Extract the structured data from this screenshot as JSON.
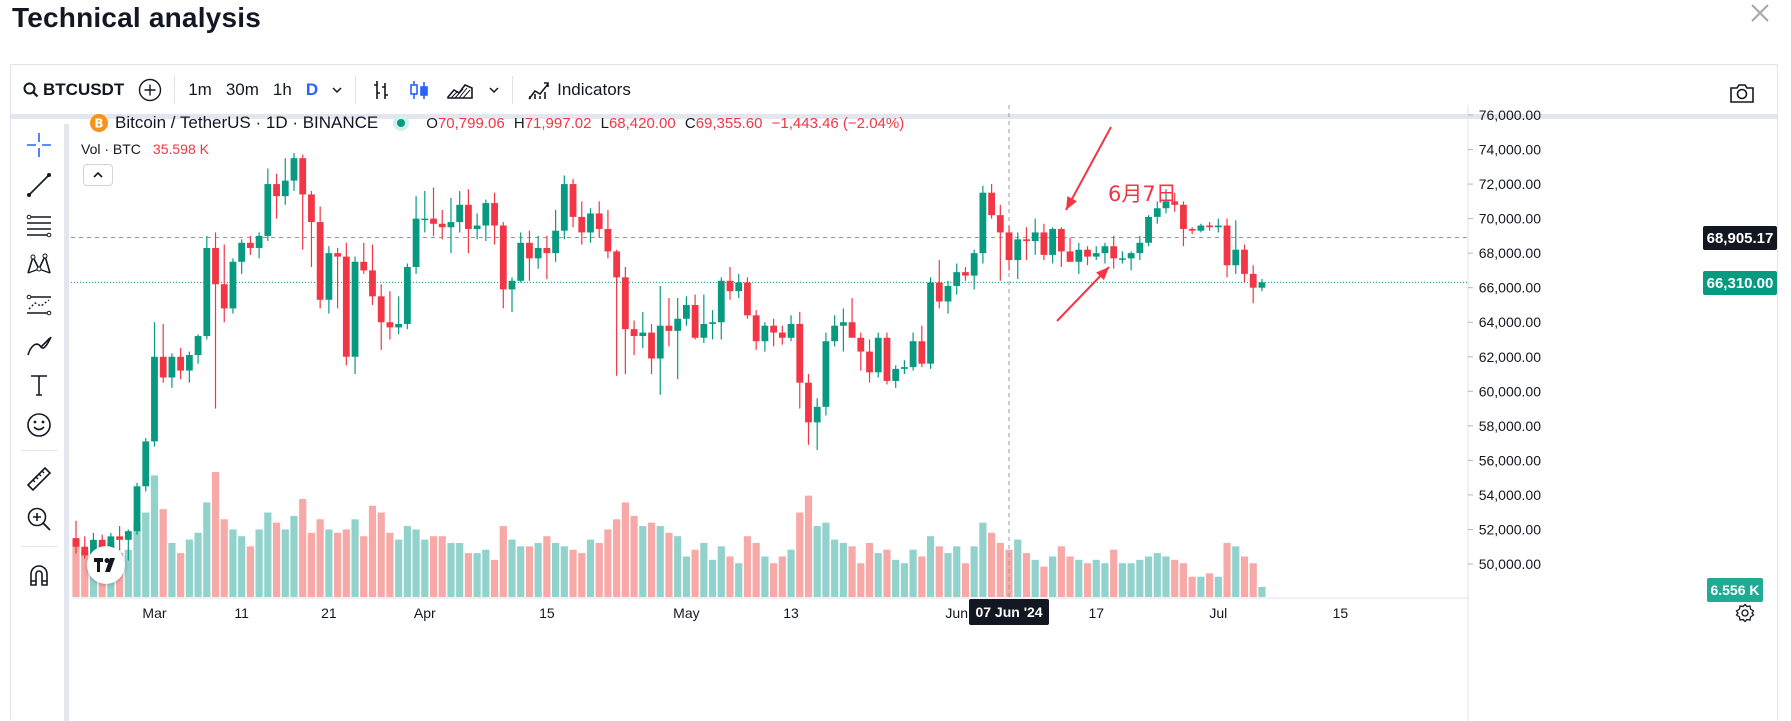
{
  "page": {
    "title": "Technical analysis"
  },
  "toolbar": {
    "symbol": "BTCUSDT",
    "intervals": [
      "1m",
      "30m",
      "1h",
      "D"
    ],
    "active_interval": "D",
    "indicators_label": "Indicators"
  },
  "legend": {
    "symbol_line": "Bitcoin / TetherUS · 1D · BINANCE",
    "o_label": "O",
    "o_value": "70,799.06",
    "h_label": "H",
    "h_value": "71,997.02",
    "l_label": "L",
    "l_value": "68,420.00",
    "c_label": "C",
    "c_value": "69,355.60",
    "change": "−1,443.46 (−2.04%)",
    "vol_label": "Vol · BTC",
    "vol_value": "35.598 K"
  },
  "annotation": {
    "text": "6月7日"
  },
  "crosshair": {
    "date_label": "07 Jun '24",
    "price_label": "68,905.17",
    "price": 68905.17
  },
  "last_price": {
    "label": "66,310.00",
    "price": 66310
  },
  "volume_tag": "6.556 K",
  "colors": {
    "up": "#089981",
    "down": "#f23645",
    "up_vol": "#92d2cc",
    "down_vol": "#f7a9a7",
    "accent": "#2962ff"
  },
  "chart_data": {
    "type": "candlestick",
    "symbol": "BTCUSDT",
    "y_ticks": [
      "76,000.00",
      "74,000.00",
      "72,000.00",
      "70,000.00",
      "68,000.00",
      "66,000.00",
      "64,000.00",
      "62,000.00",
      "60,000.00",
      "58,000.00",
      "56,000.00",
      "54,000.00",
      "52,000.00",
      "50,000.00"
    ],
    "y_tick_values": [
      76000,
      74000,
      72000,
      70000,
      68000,
      66000,
      64000,
      62000,
      60000,
      58000,
      56000,
      54000,
      52000,
      50000
    ],
    "ylim": [
      48000,
      76500
    ],
    "x_ticks": [
      {
        "label": "Mar",
        "index": 9
      },
      {
        "label": "11",
        "index": 19
      },
      {
        "label": "21",
        "index": 29
      },
      {
        "label": "Apr",
        "index": 40
      },
      {
        "label": "15",
        "index": 54
      },
      {
        "label": "May",
        "index": 70
      },
      {
        "label": "13",
        "index": 82
      },
      {
        "label": "Jun",
        "index": 101
      },
      {
        "label": "17",
        "index": 117
      },
      {
        "label": "Jul",
        "index": 131
      },
      {
        "label": "15",
        "index": 145
      }
    ],
    "crosshair_index": 107,
    "candles": [
      [
        51500,
        52500,
        50600,
        51000,
        1.7
      ],
      [
        51000,
        51600,
        50300,
        50500,
        1.4
      ],
      [
        50500,
        51800,
        50200,
        51400,
        1.2
      ],
      [
        51400,
        51700,
        49500,
        49900,
        1.5
      ],
      [
        49900,
        51800,
        49700,
        51600,
        1.6
      ],
      [
        51600,
        52200,
        50800,
        51400,
        1.3
      ],
      [
        51400,
        52000,
        50200,
        51900,
        1.4
      ],
      [
        51900,
        54700,
        51700,
        54500,
        2.2
      ],
      [
        54500,
        57300,
        54200,
        57100,
        2.5
      ],
      [
        57100,
        64000,
        56800,
        62000,
        3.6
      ],
      [
        62000,
        63900,
        60500,
        60800,
        2.6
      ],
      [
        60800,
        62200,
        60200,
        62000,
        1.6
      ],
      [
        62000,
        62500,
        60700,
        61200,
        1.3
      ],
      [
        61200,
        62300,
        60500,
        62100,
        1.7
      ],
      [
        62100,
        63300,
        61600,
        63200,
        1.9
      ],
      [
        63200,
        69000,
        63000,
        68300,
        2.8
      ],
      [
        68300,
        69200,
        59000,
        66200,
        3.7
      ],
      [
        66200,
        68500,
        64000,
        64800,
        2.3
      ],
      [
        64800,
        67700,
        64500,
        67500,
        2.0
      ],
      [
        67500,
        68800,
        66800,
        68600,
        1.8
      ],
      [
        68600,
        69000,
        67900,
        68300,
        1.5
      ],
      [
        68300,
        69200,
        67700,
        69000,
        2.0
      ],
      [
        69000,
        72900,
        68700,
        72000,
        2.5
      ],
      [
        72000,
        72600,
        70000,
        71300,
        2.2
      ],
      [
        71300,
        73500,
        70800,
        72200,
        2.0
      ],
      [
        72200,
        73800,
        71600,
        73500,
        2.4
      ],
      [
        73500,
        73700,
        68200,
        71400,
        2.9
      ],
      [
        71400,
        71600,
        67200,
        69800,
        1.9
      ],
      [
        69800,
        70700,
        64800,
        65300,
        2.3
      ],
      [
        65300,
        68400,
        64500,
        68000,
        2.0
      ],
      [
        68000,
        68300,
        64800,
        67800,
        1.9
      ],
      [
        67800,
        68600,
        61500,
        62000,
        2.0
      ],
      [
        62000,
        67800,
        61000,
        67500,
        2.3
      ],
      [
        67500,
        68600,
        66800,
        67000,
        1.8
      ],
      [
        67000,
        68500,
        65000,
        65500,
        2.7
      ],
      [
        65500,
        66200,
        62400,
        64000,
        2.5
      ],
      [
        64000,
        65800,
        63000,
        63700,
        1.9
      ],
      [
        63700,
        65500,
        63300,
        63900,
        1.7
      ],
      [
        63900,
        67400,
        63600,
        67200,
        2.1
      ],
      [
        67200,
        71300,
        66800,
        70000,
        2.0
      ],
      [
        70000,
        71600,
        69200,
        70000,
        1.7
      ],
      [
        70000,
        71800,
        69000,
        69700,
        1.8
      ],
      [
        69700,
        70500,
        68800,
        69500,
        1.8
      ],
      [
        69500,
        71200,
        68000,
        69800,
        1.6
      ],
      [
        69800,
        71600,
        69200,
        70800,
        1.6
      ],
      [
        70800,
        71700,
        68000,
        69400,
        1.3
      ],
      [
        69400,
        70300,
        68800,
        69600,
        1.3
      ],
      [
        69600,
        71100,
        68700,
        70900,
        1.4
      ],
      [
        70900,
        71500,
        68500,
        69600,
        1.1
      ],
      [
        69600,
        69800,
        64800,
        65900,
        2.1
      ],
      [
        65900,
        66600,
        64600,
        66400,
        1.7
      ],
      [
        66400,
        69200,
        66300,
        68600,
        1.5
      ],
      [
        68600,
        69300,
        66400,
        67700,
        1.5
      ],
      [
        67700,
        69000,
        67100,
        68300,
        1.6
      ],
      [
        68300,
        69000,
        66500,
        68000,
        1.8
      ],
      [
        68000,
        70500,
        67500,
        69300,
        1.6
      ],
      [
        69300,
        72500,
        68800,
        72000,
        1.5
      ],
      [
        72000,
        72300,
        69500,
        70100,
        1.4
      ],
      [
        70100,
        71000,
        68500,
        69200,
        1.3
      ],
      [
        69200,
        70600,
        68600,
        70300,
        1.7
      ],
      [
        70300,
        71000,
        68900,
        69400,
        1.6
      ],
      [
        69400,
        70500,
        67700,
        68100,
        2.0
      ],
      [
        68100,
        68200,
        60900,
        66600,
        2.3
      ],
      [
        66600,
        67200,
        61000,
        63600,
        2.8
      ],
      [
        63600,
        64100,
        62100,
        63200,
        2.4
      ],
      [
        63200,
        64600,
        62500,
        63400,
        2.1
      ],
      [
        63400,
        63900,
        61000,
        61900,
        2.2
      ],
      [
        61900,
        66100,
        59800,
        63800,
        2.1
      ],
      [
        63800,
        65400,
        62600,
        63500,
        1.9
      ],
      [
        63500,
        65400,
        60700,
        64200,
        1.8
      ],
      [
        64200,
        65500,
        63800,
        65000,
        1.2
      ],
      [
        65000,
        65600,
        63000,
        63100,
        1.4
      ],
      [
        63100,
        65600,
        62800,
        63900,
        1.6
      ],
      [
        63900,
        64700,
        63000,
        64000,
        1.1
      ],
      [
        64000,
        66600,
        63000,
        66400,
        1.5
      ],
      [
        66400,
        67200,
        65300,
        65800,
        1.2
      ],
      [
        65800,
        66800,
        65400,
        66300,
        1.0
      ],
      [
        66300,
        66600,
        64200,
        64400,
        1.8
      ],
      [
        64400,
        64700,
        62400,
        62900,
        1.6
      ],
      [
        62900,
        64000,
        62300,
        63800,
        1.2
      ],
      [
        63800,
        64200,
        62600,
        63400,
        1.0
      ],
      [
        63400,
        63800,
        62700,
        63100,
        1.2
      ],
      [
        63100,
        64400,
        62900,
        63900,
        1.4
      ],
      [
        63900,
        64600,
        59000,
        60500,
        2.5
      ],
      [
        60500,
        61000,
        56900,
        58200,
        3.0
      ],
      [
        58200,
        59600,
        56600,
        59100,
        2.1
      ],
      [
        59100,
        63400,
        58600,
        62900,
        2.2
      ],
      [
        62900,
        64400,
        62600,
        63800,
        1.7
      ],
      [
        63800,
        64800,
        62300,
        64000,
        1.6
      ],
      [
        64000,
        65400,
        63300,
        63100,
        1.5
      ],
      [
        63100,
        63400,
        61200,
        62300,
        1.0
      ],
      [
        62300,
        63000,
        60500,
        61100,
        1.6
      ],
      [
        61100,
        63400,
        60800,
        63100,
        1.3
      ],
      [
        63100,
        63400,
        60400,
        60600,
        1.4
      ],
      [
        60600,
        61500,
        60200,
        61300,
        1.1
      ],
      [
        61300,
        61800,
        61000,
        61400,
        1.0
      ],
      [
        61400,
        63400,
        61200,
        62900,
        1.4
      ],
      [
        62900,
        63800,
        61400,
        61600,
        1.2
      ],
      [
        61600,
        66600,
        61300,
        66300,
        1.8
      ],
      [
        66300,
        67600,
        64800,
        65200,
        1.5
      ],
      [
        65200,
        66400,
        64500,
        66100,
        1.3
      ],
      [
        66100,
        67400,
        65600,
        66900,
        1.5
      ],
      [
        66900,
        67200,
        66400,
        66700,
        1.0
      ],
      [
        66700,
        68200,
        65900,
        68000,
        1.5
      ],
      [
        68000,
        71900,
        67400,
        71500,
        2.2
      ],
      [
        71500,
        72000,
        70000,
        70200,
        1.9
      ],
      [
        70200,
        70800,
        66400,
        69200,
        1.6
      ],
      [
        69200,
        69600,
        67000,
        67600,
        1.4
      ],
      [
        67600,
        69200,
        66500,
        68800,
        1.7
      ],
      [
        68800,
        69500,
        67600,
        68700,
        1.3
      ],
      [
        68700,
        70000,
        67900,
        69200,
        1.1
      ],
      [
        69200,
        69700,
        67600,
        67900,
        0.9
      ],
      [
        67900,
        69500,
        67400,
        69400,
        1.2
      ],
      [
        69400,
        69500,
        67200,
        68100,
        1.5
      ],
      [
        68100,
        68900,
        67500,
        67500,
        1.2
      ],
      [
        67500,
        68600,
        66800,
        68200,
        1.1
      ],
      [
        68200,
        68400,
        67300,
        67800,
        1.0
      ],
      [
        67800,
        68400,
        67600,
        68000,
        1.1
      ],
      [
        68000,
        68600,
        67400,
        68400,
        1.0
      ],
      [
        68400,
        69000,
        67100,
        67700,
        1.4
      ],
      [
        67700,
        68100,
        67400,
        67700,
        1.0
      ],
      [
        67700,
        68100,
        67000,
        68000,
        1.0
      ],
      [
        68000,
        69000,
        67600,
        68600,
        1.1
      ],
      [
        68600,
        70200,
        68400,
        70100,
        1.2
      ],
      [
        70100,
        71000,
        69700,
        70600,
        1.3
      ],
      [
        70600,
        71700,
        70300,
        71000,
        1.2
      ],
      [
        71000,
        71500,
        70400,
        70800,
        1.1
      ],
      [
        70800,
        71000,
        68400,
        69400,
        1.0
      ],
      [
        69400,
        69500,
        69100,
        69300,
        0.6
      ],
      [
        69300,
        69700,
        69200,
        69600,
        0.6
      ],
      [
        69600,
        69800,
        69300,
        69500,
        0.7
      ],
      [
        69500,
        70000,
        69200,
        69600,
        0.6
      ],
      [
        69600,
        70000,
        66600,
        67300,
        1.6
      ],
      [
        67300,
        69900,
        66800,
        68200,
        1.5
      ],
      [
        68200,
        68500,
        66300,
        66800,
        1.2
      ],
      [
        66800,
        67300,
        65100,
        66000,
        1.0
      ],
      [
        66000,
        66500,
        65800,
        66310,
        0.3
      ]
    ],
    "candle_fields": [
      "open",
      "high",
      "low",
      "close",
      "volume_rel"
    ],
    "volume_scale_label": "6.556 K"
  }
}
